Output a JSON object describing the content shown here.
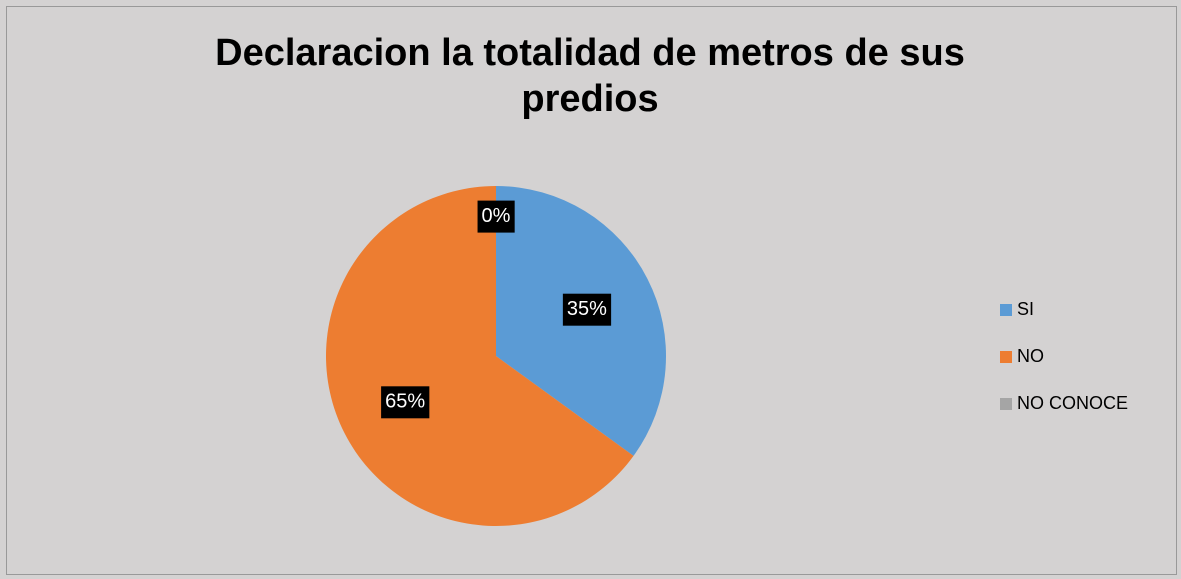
{
  "chart_data": {
    "type": "pie",
    "title": "Declaracion la totalidad de metros de sus predios",
    "categories": [
      "SI",
      "NO",
      "NO CONOCE"
    ],
    "values": [
      35,
      65,
      0
    ],
    "value_labels": [
      "35%",
      "65%",
      "0%"
    ],
    "colors": [
      "#5b9bd5",
      "#ed7d31",
      "#a5a5a5"
    ],
    "legend": "right"
  }
}
